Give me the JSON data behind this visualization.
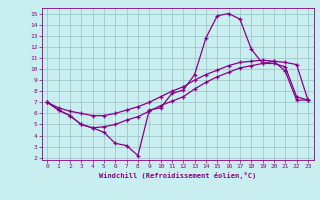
{
  "xlabel": "Windchill (Refroidissement éolien,°C)",
  "bg_color": "#c8eef0",
  "grid_color": "#a0c8c8",
  "line_color": "#880088",
  "xlim": [
    -0.5,
    23.5
  ],
  "ylim": [
    1.8,
    15.5
  ],
  "xticks": [
    0,
    1,
    2,
    3,
    4,
    5,
    6,
    7,
    8,
    9,
    10,
    11,
    12,
    13,
    14,
    15,
    16,
    17,
    18,
    19,
    20,
    21,
    22,
    23
  ],
  "yticks": [
    2,
    3,
    4,
    5,
    6,
    7,
    8,
    9,
    10,
    11,
    12,
    13,
    14,
    15
  ],
  "line1_x": [
    0,
    1,
    2,
    3,
    4,
    5,
    6,
    7,
    8,
    9,
    10,
    11,
    12,
    13,
    14,
    15,
    16,
    17,
    18,
    19,
    20,
    21,
    22,
    23
  ],
  "line1_y": [
    7.0,
    6.3,
    5.8,
    5.0,
    4.7,
    4.3,
    3.3,
    3.1,
    2.2,
    6.3,
    6.5,
    7.8,
    8.1,
    9.5,
    12.8,
    14.8,
    15.0,
    14.5,
    11.8,
    10.5,
    10.7,
    9.8,
    7.2,
    7.2
  ],
  "line2_x": [
    0,
    1,
    2,
    3,
    4,
    5,
    6,
    7,
    8,
    9,
    10,
    11,
    12,
    13,
    14,
    15,
    16,
    17,
    18,
    19,
    20,
    21,
    22,
    23
  ],
  "line2_y": [
    7.0,
    6.5,
    6.2,
    6.0,
    5.8,
    5.8,
    6.0,
    6.3,
    6.6,
    7.0,
    7.5,
    8.0,
    8.4,
    9.0,
    9.5,
    9.9,
    10.3,
    10.6,
    10.7,
    10.8,
    10.7,
    10.6,
    10.4,
    7.2
  ],
  "line3_x": [
    0,
    1,
    2,
    3,
    4,
    5,
    6,
    7,
    8,
    9,
    10,
    11,
    12,
    13,
    14,
    15,
    16,
    17,
    18,
    19,
    20,
    21,
    22,
    23
  ],
  "line3_y": [
    7.0,
    6.3,
    5.8,
    5.0,
    4.7,
    4.8,
    5.0,
    5.4,
    5.7,
    6.2,
    6.7,
    7.1,
    7.5,
    8.2,
    8.8,
    9.3,
    9.7,
    10.1,
    10.3,
    10.5,
    10.5,
    10.2,
    7.5,
    7.2
  ],
  "xlabel_fontsize": 5.0,
  "tick_fontsize": 4.5
}
